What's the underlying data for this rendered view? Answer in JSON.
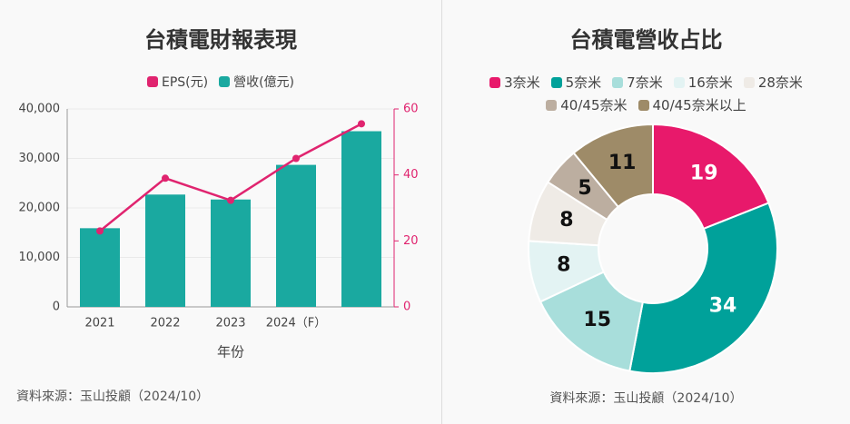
{
  "chart_data": [
    {
      "type": "bar_line",
      "title": "台積電財報表現",
      "categories": [
        "2021",
        "2022",
        "2023",
        "2024（F）",
        null
      ],
      "series": [
        {
          "name": "EPS(元)",
          "color": "#e0246f",
          "type": "line",
          "axis": "y2",
          "values": [
            23,
            39,
            32.3,
            45,
            55.5
          ]
        },
        {
          "name": "營收(億元)",
          "color": "#1aa9a0",
          "type": "bar",
          "values": [
            15900,
            22700,
            21700,
            28700,
            35500
          ]
        }
      ],
      "ylim": [
        0,
        40000
      ],
      "yticks": [
        0,
        {
          "value": 10000,
          "label": "10,000"
        },
        {
          "value": 20000,
          "label": "20,000"
        },
        {
          "value": 30000,
          "label": "30,000"
        },
        {
          "value": 40000,
          "label": "40,000"
        }
      ],
      "y2lim": [
        0,
        60
      ],
      "y2ticks": [
        0,
        20,
        40,
        60
      ],
      "xlabel": "年份",
      "grid": true,
      "legend": "top",
      "source": "資料來源：玉山投顧（2024/10）"
    },
    {
      "type": "donut",
      "title": "台積電營收占比",
      "categories": [
        "3奈米",
        "5奈米",
        "7奈米",
        "16奈米",
        "28奈米",
        "40/45奈米",
        "40/45奈米以上"
      ],
      "values": [
        19,
        34,
        15,
        8,
        8,
        5,
        11
      ],
      "colors": [
        "#e8196b",
        "#00a19a",
        "#a8dedb",
        "#e3f3f3",
        "#efebe6",
        "#bcaea0",
        "#9e8b68"
      ],
      "legend": "top",
      "source": "資料來源：玉山投顧（2024/10）"
    }
  ]
}
